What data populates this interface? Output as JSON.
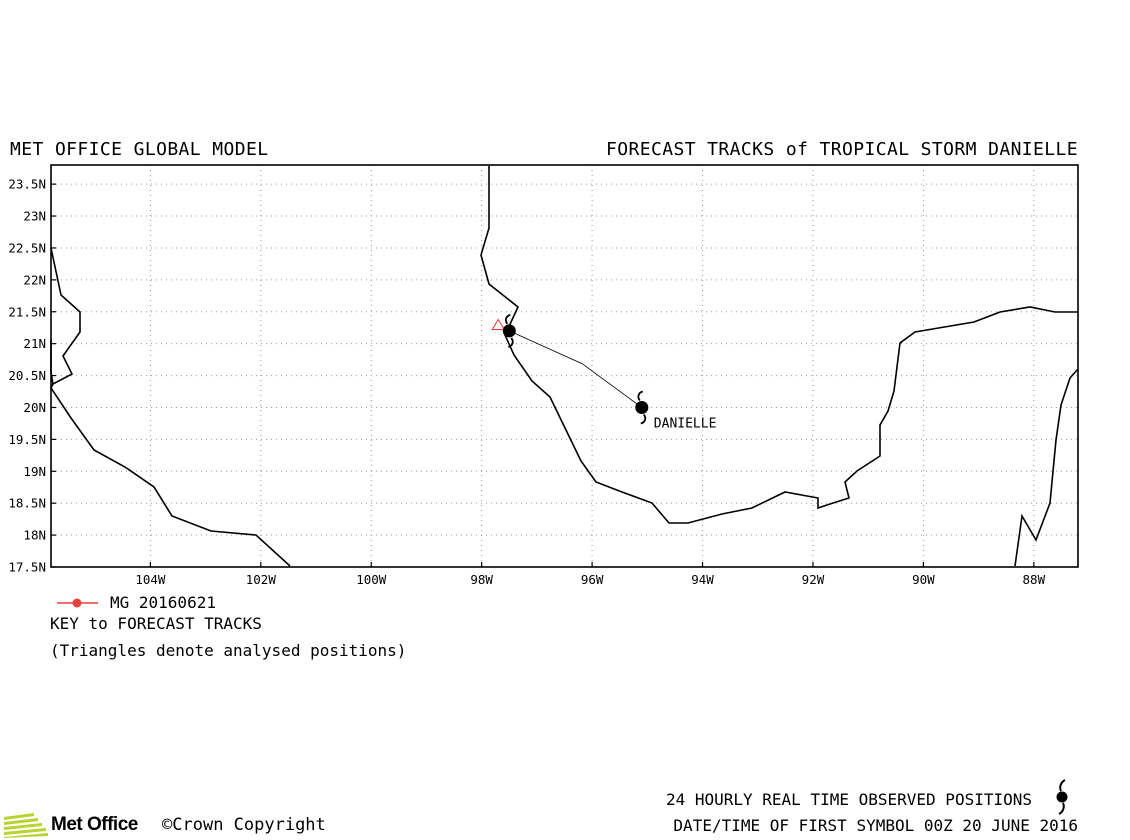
{
  "header": {
    "left_title": "MET OFFICE GLOBAL MODEL",
    "right_title": "FORECAST TRACKS of TROPICAL STORM DANIELLE"
  },
  "chart_data": {
    "type": "map",
    "lon_range": [
      -105.8,
      -87.2
    ],
    "lat_range": [
      17.5,
      23.8
    ],
    "grid": true,
    "lon_ticks": [
      {
        "value": -104,
        "label": "104W"
      },
      {
        "value": -102,
        "label": "102W"
      },
      {
        "value": -100,
        "label": "100W"
      },
      {
        "value": -98,
        "label": "98W"
      },
      {
        "value": -96,
        "label": "96W"
      },
      {
        "value": -94,
        "label": "94W"
      },
      {
        "value": -92,
        "label": "92W"
      },
      {
        "value": -90,
        "label": "90W"
      },
      {
        "value": -88,
        "label": "88W"
      }
    ],
    "lat_ticks": [
      {
        "value": 17.5,
        "label": "17.5N"
      },
      {
        "value": 18,
        "label": "18N"
      },
      {
        "value": 18.5,
        "label": "18.5N"
      },
      {
        "value": 19,
        "label": "19N"
      },
      {
        "value": 19.5,
        "label": "19.5N"
      },
      {
        "value": 20,
        "label": "20N"
      },
      {
        "value": 20.5,
        "label": "20.5N"
      },
      {
        "value": 21,
        "label": "21N"
      },
      {
        "value": 21.5,
        "label": "21.5N"
      },
      {
        "value": 22,
        "label": "22N"
      },
      {
        "value": 22.5,
        "label": "22.5N"
      },
      {
        "value": 23,
        "label": "23N"
      },
      {
        "value": 23.5,
        "label": "23.5N"
      }
    ],
    "observed_positions": [
      {
        "lon": -97.5,
        "lat": 21.2
      },
      {
        "lon": -95.1,
        "lat": 20.0
      }
    ],
    "observed_track_color": "#000000",
    "storm_label": "DANIELLE",
    "storm_label_position": {
      "lon": -95.1,
      "lat": 20.0
    },
    "forecast_tracks": [
      {
        "name": "MG 20160621",
        "color": "#e8413c",
        "analysed_position": {
          "lon": -97.7,
          "lat": 21.3
        }
      }
    ]
  },
  "key": {
    "title": "KEY to FORECAST TRACKS",
    "note": "(Triangles denote analysed positions)"
  },
  "footer": {
    "observed_note": "24 HOURLY REAL TIME OBSERVED POSITIONS",
    "first_symbol": "DATE/TIME OF FIRST SYMBOL 00Z 20 JUNE 2016",
    "logo_text": "Met Office",
    "copyright": "Crown Copyright",
    "logo_color": "#b8d432"
  }
}
